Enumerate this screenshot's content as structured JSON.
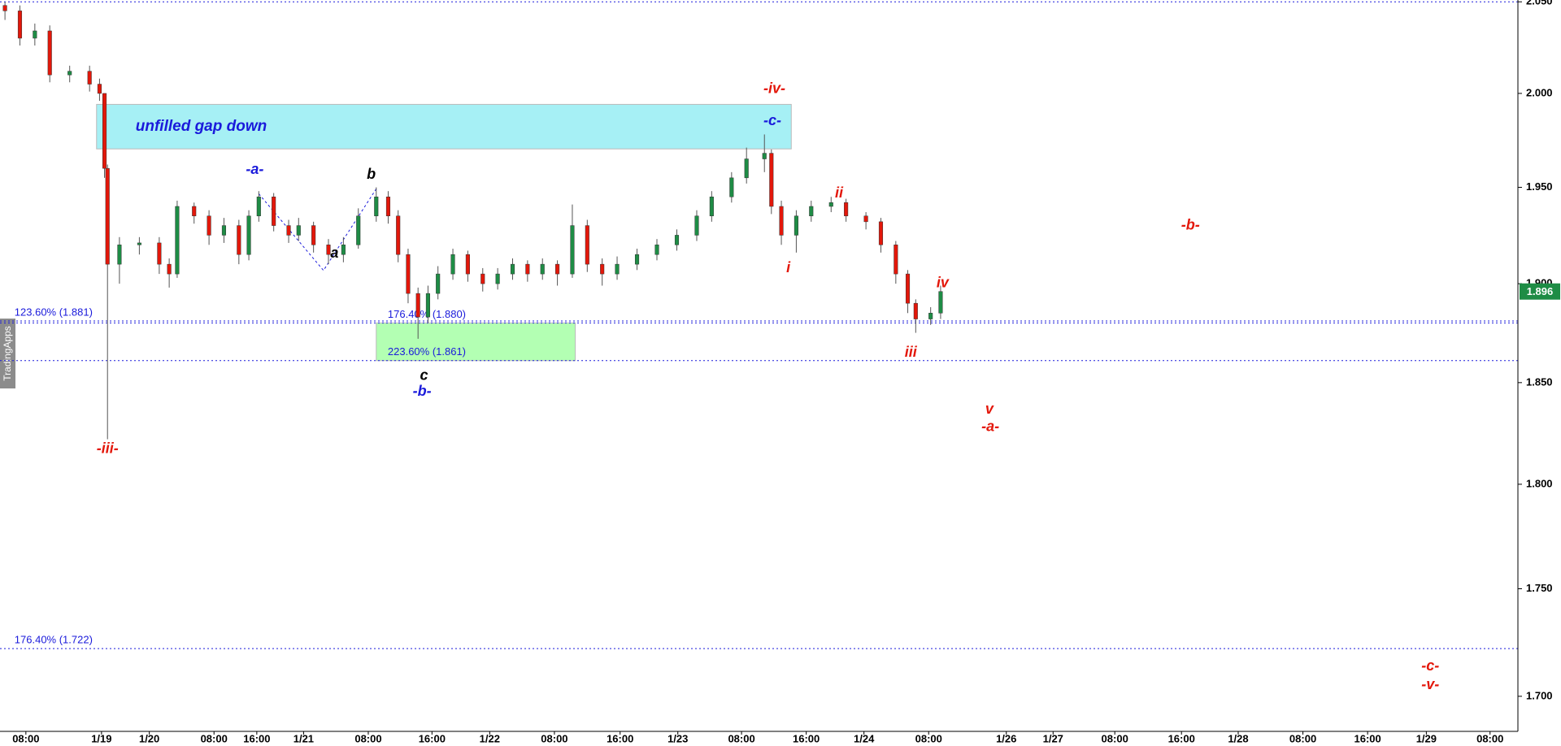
{
  "chart_data": {
    "type": "candlestick",
    "watermark": "TradingApps",
    "yscale": "log",
    "xlim": [
      0,
      381.25
    ],
    "ylim": [
      1.684,
      2.051
    ],
    "yticks": [
      {
        "value": 1.7,
        "label": "1.700"
      },
      {
        "value": 1.75,
        "label": "1.750"
      },
      {
        "value": 1.8,
        "label": "1.800"
      },
      {
        "value": 1.85,
        "label": "1.850"
      },
      {
        "value": 1.9,
        "label": "1.900"
      },
      {
        "value": 1.95,
        "label": "1.950"
      },
      {
        "value": 2.0,
        "label": "2.000"
      },
      {
        "value": 2.05,
        "label": "2.050"
      }
    ],
    "xticks": [
      {
        "value": 6.5,
        "label": "08:00"
      },
      {
        "value": 25.5,
        "label": "1/19"
      },
      {
        "value": 37.5,
        "label": "1/20"
      },
      {
        "value": 53.75,
        "label": "08:00"
      },
      {
        "value": 64.5,
        "label": "16:00"
      },
      {
        "value": 76.25,
        "label": "1/21"
      },
      {
        "value": 92.5,
        "label": "08:00"
      },
      {
        "value": 108.5,
        "label": "16:00"
      },
      {
        "value": 123,
        "label": "1/22"
      },
      {
        "value": 139.25,
        "label": "08:00"
      },
      {
        "value": 155.75,
        "label": "16:00"
      },
      {
        "value": 170.25,
        "label": "1/23"
      },
      {
        "value": 186.25,
        "label": "08:00"
      },
      {
        "value": 202.5,
        "label": "16:00"
      },
      {
        "value": 217,
        "label": "1/24"
      },
      {
        "value": 233.25,
        "label": "08:00"
      },
      {
        "value": 252.75,
        "label": "1/26"
      },
      {
        "value": 264.5,
        "label": "1/27"
      },
      {
        "value": 280,
        "label": "08:00"
      },
      {
        "value": 296.75,
        "label": "16:00"
      },
      {
        "value": 311,
        "label": "1/28"
      },
      {
        "value": 327.25,
        "label": "08:00"
      },
      {
        "value": 343.5,
        "label": "16:00"
      },
      {
        "value": 358.25,
        "label": "1/29"
      },
      {
        "value": 374.25,
        "label": "08:00"
      }
    ],
    "up_color": "#1e8c45",
    "down_color": "#e3170a",
    "x": [
      1.25,
      5,
      8.75,
      12.5,
      17.5,
      22.5,
      25,
      26.25,
      27,
      30,
      35,
      40,
      42.5,
      44.5,
      48.75,
      52.5,
      56.25,
      60,
      62.5,
      65,
      68.75,
      72.5,
      75,
      78.75,
      82.5,
      86.25,
      90,
      94.5,
      97.5,
      100,
      102.5,
      105,
      107.5,
      110,
      113.75,
      117.5,
      121.25,
      125,
      128.75,
      132.5,
      136.25,
      140,
      143.75,
      147.5,
      151.25,
      155,
      160,
      165,
      170,
      175,
      178.75,
      183.75,
      187.5,
      192,
      193.75,
      196.25,
      200,
      203.75,
      208.75,
      212.5,
      217.5,
      221.25,
      225,
      228,
      230,
      233.75,
      236.25
    ],
    "open": [
      2.048,
      2.045,
      2.03,
      2.034,
      2.01,
      2.012,
      2.005,
      2.0,
      1.96,
      1.91,
      1.92,
      1.921,
      1.91,
      1.905,
      1.94,
      1.935,
      1.925,
      1.93,
      1.915,
      1.935,
      1.945,
      1.93,
      1.925,
      1.93,
      1.92,
      1.915,
      1.92,
      1.935,
      1.945,
      1.935,
      1.915,
      1.895,
      1.883,
      1.895,
      1.905,
      1.915,
      1.905,
      1.9,
      1.905,
      1.91,
      1.905,
      1.91,
      1.905,
      1.93,
      1.91,
      1.905,
      1.91,
      1.915,
      1.92,
      1.925,
      1.935,
      1.945,
      1.955,
      1.965,
      1.968,
      1.94,
      1.925,
      1.935,
      1.94,
      1.942,
      1.935,
      1.932,
      1.92,
      1.905,
      1.89,
      1.882,
      1.885
    ],
    "high": [
      2.05,
      2.048,
      2.038,
      2.037,
      2.015,
      2.015,
      2.008,
      2.0,
      1.962,
      1.924,
      1.924,
      1.924,
      1.913,
      1.943,
      1.942,
      1.938,
      1.934,
      1.933,
      1.938,
      1.948,
      1.947,
      1.933,
      1.934,
      1.932,
      1.923,
      1.924,
      1.939,
      1.95,
      1.948,
      1.938,
      1.918,
      1.898,
      1.899,
      1.909,
      1.918,
      1.917,
      1.908,
      1.908,
      1.913,
      1.912,
      1.913,
      1.912,
      1.941,
      1.933,
      1.913,
      1.914,
      1.918,
      1.923,
      1.928,
      1.938,
      1.948,
      1.958,
      1.971,
      1.978,
      1.97,
      1.943,
      1.938,
      1.943,
      1.945,
      1.944,
      1.937,
      1.934,
      1.922,
      1.907,
      1.892,
      1.888,
      1.899
    ],
    "low": [
      2.04,
      2.026,
      2.026,
      2.006,
      2.006,
      2.001,
      1.996,
      1.955,
      1.822,
      1.9,
      1.915,
      1.905,
      1.898,
      1.903,
      1.931,
      1.92,
      1.921,
      1.91,
      1.912,
      1.932,
      1.927,
      1.921,
      1.922,
      1.916,
      1.91,
      1.911,
      1.918,
      1.932,
      1.931,
      1.911,
      1.89,
      1.872,
      1.88,
      1.892,
      1.902,
      1.901,
      1.896,
      1.897,
      1.902,
      1.901,
      1.902,
      1.899,
      1.903,
      1.906,
      1.899,
      1.902,
      1.907,
      1.912,
      1.917,
      1.922,
      1.932,
      1.942,
      1.952,
      1.958,
      1.936,
      1.92,
      1.916,
      1.932,
      1.937,
      1.932,
      1.928,
      1.916,
      1.9,
      1.885,
      1.875,
      1.879,
      1.882
    ],
    "close": [
      2.045,
      2.03,
      2.034,
      2.01,
      2.012,
      2.005,
      2.0,
      1.96,
      1.91,
      1.92,
      1.921,
      1.91,
      1.905,
      1.94,
      1.935,
      1.925,
      1.93,
      1.915,
      1.935,
      1.945,
      1.93,
      1.925,
      1.93,
      1.92,
      1.915,
      1.92,
      1.935,
      1.945,
      1.935,
      1.915,
      1.895,
      1.883,
      1.895,
      1.905,
      1.915,
      1.905,
      1.9,
      1.905,
      1.91,
      1.905,
      1.91,
      1.905,
      1.93,
      1.91,
      1.905,
      1.91,
      1.915,
      1.92,
      1.925,
      1.935,
      1.945,
      1.955,
      1.965,
      1.968,
      1.94,
      1.925,
      1.935,
      1.94,
      1.942,
      1.935,
      1.932,
      1.92,
      1.905,
      1.89,
      1.882,
      1.885,
      1.896
    ],
    "last_price": {
      "value": 1.896,
      "label": "1.896",
      "color": "#1e8c45"
    },
    "level_color": "#1a1adb",
    "levels": [
      {
        "value": 2.05
      },
      {
        "value": 1.881,
        "label": "123.60% (1.881)",
        "x": 2
      },
      {
        "value": 1.88,
        "label": "176.40% (1.880)",
        "x": 95.75
      },
      {
        "value": 1.861,
        "label": "223.60% (1.861)",
        "x": 95.75
      },
      {
        "value": 1.722,
        "label": "176.40% (1.722)",
        "x": 2
      }
    ],
    "zones": [
      {
        "label": "unfilled gap down",
        "x": [
          24.25,
          198.75
        ],
        "y": [
          1.9703,
          1.9941
        ],
        "color": "#a6f0f5",
        "label_color": "#1a1adb"
      },
      {
        "x": [
          94.5,
          144.5
        ],
        "y": [
          1.861,
          1.88
        ],
        "color": "#b3ffb3"
      }
    ],
    "wave_path": {
      "x": [
        65,
        81.25,
        94.5
      ],
      "y": [
        1.9466,
        1.9068,
        1.9492
      ],
      "color": "#1a1adb"
    },
    "annotations": [
      {
        "text": "-iv-",
        "x": 194.5,
        "y": 2.0022,
        "color": "#e3170a"
      },
      {
        "text": "-c-",
        "x": 194,
        "y": 1.9851,
        "color": "#1a1adb"
      },
      {
        "text": "-a-",
        "x": 64,
        "y": 1.9592,
        "color": "#1a1adb"
      },
      {
        "text": "b",
        "x": 93.25,
        "y": 1.9566,
        "color": "#000000"
      },
      {
        "text": "a",
        "x": 84,
        "y": 1.9155,
        "color": "#000000"
      },
      {
        "text": "c",
        "x": 106.5,
        "y": 1.8533,
        "color": "#000000"
      },
      {
        "text": "-b-",
        "x": 106,
        "y": 1.8453,
        "color": "#1a1adb"
      },
      {
        "text": "-iii-",
        "x": 27,
        "y": 1.817,
        "color": "#e3170a"
      },
      {
        "text": "ii",
        "x": 210.75,
        "y": 1.9466,
        "color": "#e3170a"
      },
      {
        "text": "i",
        "x": 198,
        "y": 1.9078,
        "color": "#e3170a"
      },
      {
        "text": "iv",
        "x": 236.75,
        "y": 1.9001,
        "color": "#e3170a"
      },
      {
        "text": "iii",
        "x": 228.75,
        "y": 1.8648,
        "color": "#e3170a"
      },
      {
        "text": "v",
        "x": 248.5,
        "y": 1.8366,
        "color": "#e3170a"
      },
      {
        "text": "-a-",
        "x": 248.75,
        "y": 1.8278,
        "color": "#e3170a"
      },
      {
        "text": "-b-",
        "x": 299,
        "y": 1.9299,
        "color": "#e3170a"
      },
      {
        "text": "-c-",
        "x": 359.25,
        "y": 1.7137,
        "color": "#e3170a"
      },
      {
        "text": "-v-",
        "x": 359.25,
        "y": 1.705,
        "color": "#e3170a"
      }
    ]
  }
}
